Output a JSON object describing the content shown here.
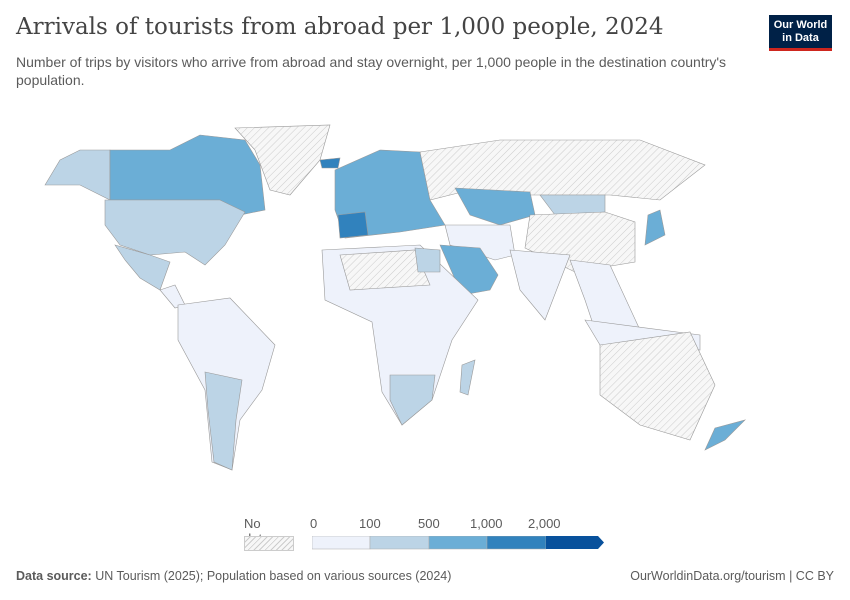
{
  "header": {
    "title": "Arrivals of tourists from abroad per 1,000 people, 2024",
    "subtitle": "Number of trips by visitors who arrive from abroad and stay overnight, per 1,000 people in the destination country's population."
  },
  "logo": {
    "line1": "Our World",
    "line2": "in Data",
    "bg": "#002147",
    "accent": "#ce261e"
  },
  "legend": {
    "no_data_label": "No data",
    "ticks": [
      "0",
      "100",
      "500",
      "1,000",
      "2,000"
    ],
    "bins": [
      {
        "range": "0-100",
        "color": "#eef2fb"
      },
      {
        "range": "100-500",
        "color": "#bcd4e6"
      },
      {
        "range": "500-1,000",
        "color": "#6baed6"
      },
      {
        "range": "1,000-2,000",
        "color": "#3182bd"
      },
      {
        "range": "2,000+",
        "color": "#08519c"
      }
    ]
  },
  "footer": {
    "source_label": "Data source:",
    "source_text": "UN Tourism (2025); Population based on various sources (2024)",
    "link": "OurWorldinData.org/tourism | CC BY"
  }
}
